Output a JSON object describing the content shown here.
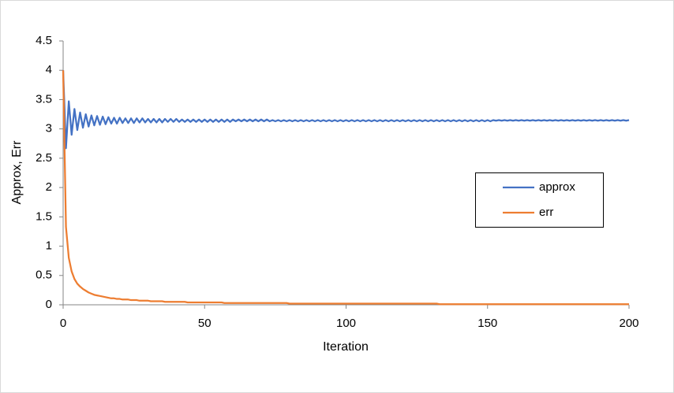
{
  "chart_data": {
    "type": "line",
    "xlabel": "Iteration",
    "ylabel": "Approx, Err",
    "xlim": [
      0,
      200
    ],
    "ylim": [
      0,
      4.5
    ],
    "xticks": [
      0,
      50,
      100,
      150,
      200
    ],
    "yticks": [
      0,
      0.5,
      1,
      1.5,
      2,
      2.5,
      3,
      3.5,
      4,
      4.5
    ],
    "legend": "right",
    "x": [
      0,
      1,
      2,
      3,
      4,
      5,
      6,
      7,
      8,
      9,
      10,
      11,
      12,
      13,
      14,
      15,
      16,
      17,
      18,
      19,
      20,
      21,
      22,
      23,
      24,
      25,
      26,
      27,
      28,
      29,
      30,
      31,
      32,
      33,
      34,
      35,
      36,
      37,
      38,
      39,
      40,
      41,
      42,
      43,
      44,
      45,
      46,
      47,
      48,
      49,
      50,
      51,
      52,
      53,
      54,
      55,
      56,
      57,
      58,
      59,
      60,
      61,
      62,
      63,
      64,
      65,
      66,
      67,
      68,
      69,
      70,
      71,
      72,
      73,
      74,
      75,
      76,
      77,
      78,
      79,
      80,
      81,
      82,
      83,
      84,
      85,
      86,
      87,
      88,
      89,
      90,
      91,
      92,
      93,
      94,
      95,
      96,
      97,
      98,
      99,
      100,
      101,
      102,
      103,
      104,
      105,
      106,
      107,
      108,
      109,
      110,
      111,
      112,
      113,
      114,
      115,
      116,
      117,
      118,
      119,
      120,
      121,
      122,
      123,
      124,
      125,
      126,
      127,
      128,
      129,
      130,
      131,
      132,
      133,
      134,
      135,
      136,
      137,
      138,
      139,
      140,
      141,
      142,
      143,
      144,
      145,
      146,
      147,
      148,
      149,
      150,
      151,
      152,
      153,
      154,
      155,
      156,
      157,
      158,
      159,
      160,
      161,
      162,
      163,
      164,
      165,
      166,
      167,
      168,
      169,
      170,
      171,
      172,
      173,
      174,
      175,
      176,
      177,
      178,
      179,
      180,
      181,
      182,
      183,
      184,
      185,
      186,
      187,
      188,
      189,
      190,
      191,
      192,
      193,
      194,
      195,
      196,
      197,
      198,
      199,
      200
    ],
    "series": [
      {
        "name": "approx",
        "color": "#4472c4",
        "values": [
          4,
          2.67,
          3.47,
          2.9,
          3.34,
          2.98,
          3.28,
          3.02,
          3.25,
          3.04,
          3.23,
          3.06,
          3.22,
          3.07,
          3.21,
          3.08,
          3.2,
          3.09,
          3.19,
          3.09,
          3.19,
          3.1,
          3.18,
          3.1,
          3.18,
          3.1,
          3.18,
          3.11,
          3.18,
          3.11,
          3.17,
          3.11,
          3.17,
          3.11,
          3.17,
          3.11,
          3.17,
          3.12,
          3.17,
          3.12,
          3.17,
          3.12,
          3.16,
          3.12,
          3.16,
          3.12,
          3.16,
          3.12,
          3.16,
          3.12,
          3.16,
          3.12,
          3.16,
          3.12,
          3.16,
          3.12,
          3.16,
          3.12,
          3.16,
          3.12,
          3.16,
          3.13,
          3.16,
          3.13,
          3.16,
          3.13,
          3.16,
          3.13,
          3.16,
          3.13,
          3.16,
          3.13,
          3.16,
          3.13,
          3.15,
          3.13,
          3.15,
          3.13,
          3.15,
          3.13,
          3.15,
          3.13,
          3.15,
          3.13,
          3.15,
          3.13,
          3.15,
          3.13,
          3.15,
          3.13,
          3.15,
          3.13,
          3.15,
          3.13,
          3.15,
          3.13,
          3.15,
          3.13,
          3.15,
          3.13,
          3.15,
          3.13,
          3.15,
          3.13,
          3.15,
          3.13,
          3.15,
          3.13,
          3.15,
          3.13,
          3.15,
          3.13,
          3.15,
          3.13,
          3.15,
          3.13,
          3.15,
          3.13,
          3.15,
          3.13,
          3.15,
          3.13,
          3.15,
          3.13,
          3.15,
          3.13,
          3.15,
          3.13,
          3.15,
          3.13,
          3.15,
          3.13,
          3.15,
          3.13,
          3.15,
          3.13,
          3.15,
          3.13,
          3.15,
          3.13,
          3.15,
          3.13,
          3.15,
          3.13,
          3.15,
          3.13,
          3.15,
          3.13,
          3.15,
          3.13,
          3.15,
          3.13,
          3.15,
          3.14,
          3.15,
          3.14,
          3.15,
          3.14,
          3.15,
          3.14,
          3.15,
          3.14,
          3.15,
          3.14,
          3.15,
          3.14,
          3.15,
          3.14,
          3.15,
          3.14,
          3.15,
          3.14,
          3.15,
          3.14,
          3.15,
          3.14,
          3.15,
          3.14,
          3.15,
          3.14,
          3.15,
          3.14,
          3.15,
          3.14,
          3.15,
          3.14,
          3.15,
          3.14,
          3.15,
          3.14,
          3.15,
          3.14,
          3.15,
          3.14,
          3.15,
          3.14,
          3.15,
          3.14,
          3.15,
          3.14,
          3.15
        ]
      },
      {
        "name": "err",
        "color": "#ed7d31",
        "values": [
          4,
          1.33,
          0.8,
          0.57,
          0.44,
          0.36,
          0.31,
          0.27,
          0.24,
          0.21,
          0.19,
          0.17,
          0.16,
          0.15,
          0.14,
          0.13,
          0.12,
          0.11,
          0.11,
          0.1,
          0.1,
          0.09,
          0.09,
          0.09,
          0.08,
          0.08,
          0.08,
          0.07,
          0.07,
          0.07,
          0.07,
          0.06,
          0.06,
          0.06,
          0.06,
          0.06,
          0.05,
          0.05,
          0.05,
          0.05,
          0.05,
          0.05,
          0.05,
          0.05,
          0.04,
          0.04,
          0.04,
          0.04,
          0.04,
          0.04,
          0.04,
          0.04,
          0.04,
          0.04,
          0.04,
          0.04,
          0.04,
          0.03,
          0.03,
          0.03,
          0.03,
          0.03,
          0.03,
          0.03,
          0.03,
          0.03,
          0.03,
          0.03,
          0.03,
          0.03,
          0.03,
          0.03,
          0.03,
          0.03,
          0.03,
          0.03,
          0.03,
          0.03,
          0.03,
          0.03,
          0.02,
          0.02,
          0.02,
          0.02,
          0.02,
          0.02,
          0.02,
          0.02,
          0.02,
          0.02,
          0.02,
          0.02,
          0.02,
          0.02,
          0.02,
          0.02,
          0.02,
          0.02,
          0.02,
          0.02,
          0.02,
          0.02,
          0.02,
          0.02,
          0.02,
          0.02,
          0.02,
          0.02,
          0.02,
          0.02,
          0.02,
          0.02,
          0.02,
          0.02,
          0.02,
          0.02,
          0.02,
          0.02,
          0.02,
          0.02,
          0.02,
          0.02,
          0.02,
          0.02,
          0.02,
          0.02,
          0.02,
          0.02,
          0.02,
          0.02,
          0.02,
          0.02,
          0.02,
          0.01,
          0.01,
          0.01,
          0.01,
          0.01,
          0.01,
          0.01,
          0.01,
          0.01,
          0.01,
          0.01,
          0.01,
          0.01,
          0.01,
          0.01,
          0.01,
          0.01,
          0.01,
          0.01,
          0.01,
          0.01,
          0.01,
          0.01,
          0.01,
          0.01,
          0.01,
          0.01,
          0.01,
          0.01,
          0.01,
          0.01,
          0.01,
          0.01,
          0.01,
          0.01,
          0.01,
          0.01,
          0.01,
          0.01,
          0.01,
          0.01,
          0.01,
          0.01,
          0.01,
          0.01,
          0.01,
          0.01,
          0.01,
          0.01,
          0.01,
          0.01,
          0.01,
          0.01,
          0.01,
          0.01,
          0.01,
          0.01,
          0.01,
          0.01,
          0.01,
          0.01,
          0.01,
          0.01,
          0.01,
          0.01,
          0.01,
          0.01,
          0.01
        ]
      }
    ]
  }
}
